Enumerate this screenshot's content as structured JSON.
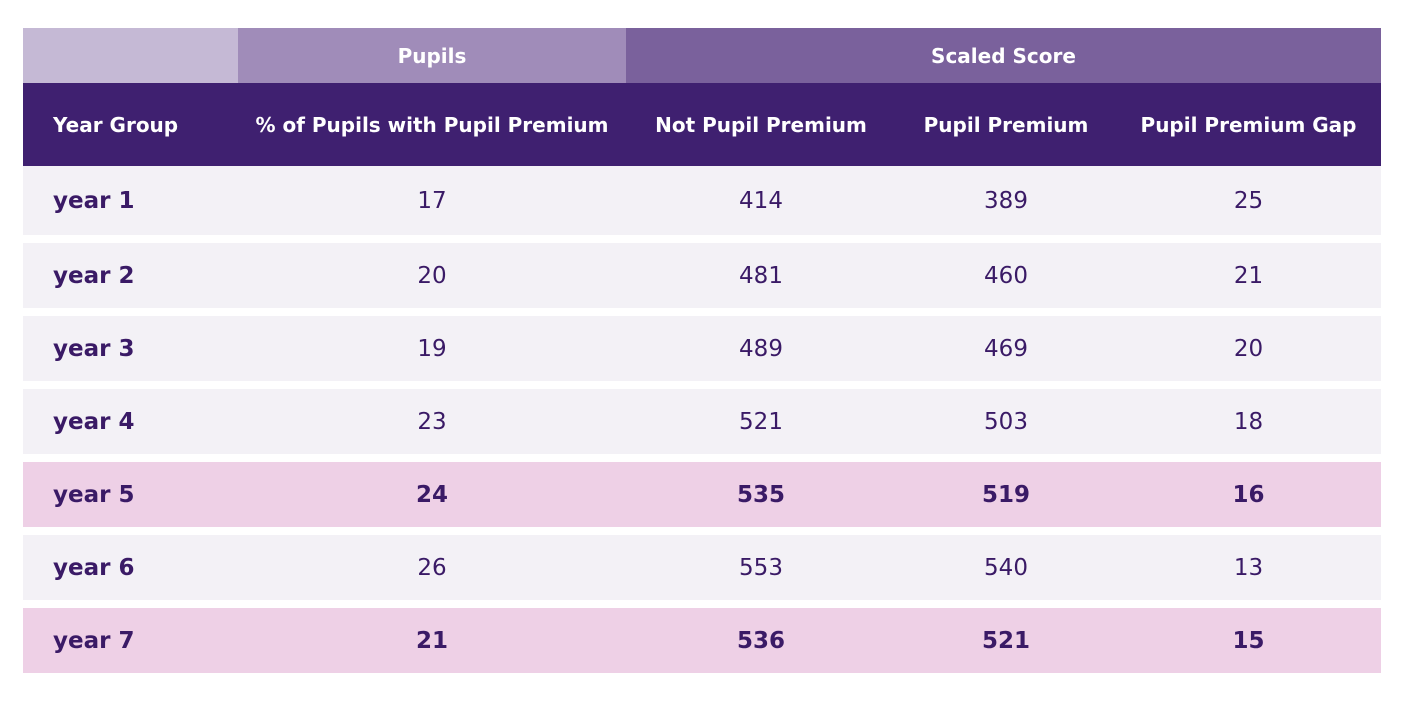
{
  "group_header": {
    "pupils": "Pupils",
    "scaled_score": "Scaled Score"
  },
  "headers": {
    "year_group": "Year Group",
    "pct_pupil_premium": "% of Pupils with Pupil Premium",
    "not_pupil_premium": "Not Pupil Premium",
    "pupil_premium": "Pupil Premium",
    "pupil_premium_gap": "Pupil Premium Gap"
  },
  "rows": [
    {
      "year": "year 1",
      "pct": "17",
      "not_pp": "414",
      "pp": "389",
      "gap": "25",
      "highlight": false
    },
    {
      "year": "year 2",
      "pct": "20",
      "not_pp": "481",
      "pp": "460",
      "gap": "21",
      "highlight": false
    },
    {
      "year": "year 3",
      "pct": "19",
      "not_pp": "489",
      "pp": "469",
      "gap": "20",
      "highlight": false
    },
    {
      "year": "year 4",
      "pct": "23",
      "not_pp": "521",
      "pp": "503",
      "gap": "18",
      "highlight": false
    },
    {
      "year": "year 5",
      "pct": "24",
      "not_pp": "535",
      "pp": "519",
      "gap": "16",
      "highlight": true
    },
    {
      "year": "year 6",
      "pct": "26",
      "not_pp": "553",
      "pp": "540",
      "gap": "13",
      "highlight": false
    },
    {
      "year": "year 7",
      "pct": "21",
      "not_pp": "536",
      "pp": "521",
      "gap": "15",
      "highlight": true
    }
  ],
  "colors": {
    "header_dark": "#3f2070",
    "group_light": "#c5b9d5",
    "group_mid": "#a08cb9",
    "group_scaled": "#7a619c",
    "row_bg": "#f3f1f6",
    "row_highlight": "#eed0e6",
    "text": "#3a1a66"
  }
}
